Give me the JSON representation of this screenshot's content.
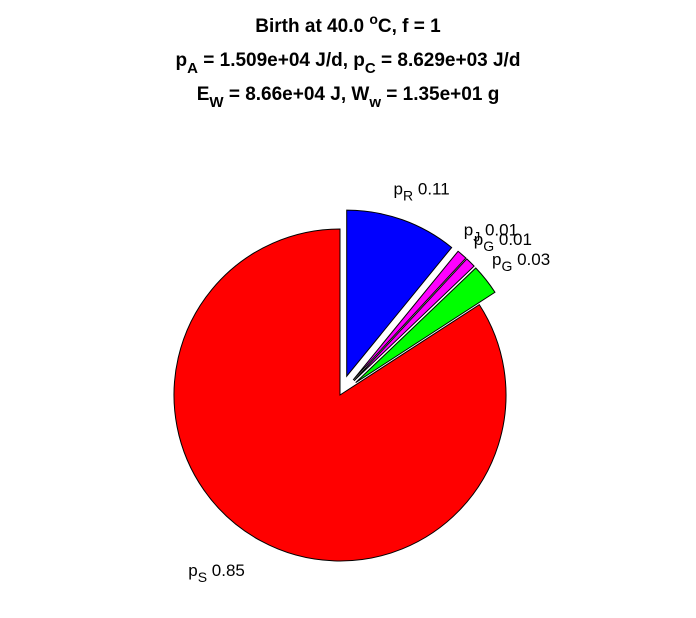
{
  "chart_data": {
    "type": "pie",
    "title": [
      [
        {
          "text": "Birth at 40.0 "
        },
        {
          "text": "o",
          "style": "sup"
        },
        {
          "text": "C, f = 1"
        }
      ],
      [
        {
          "text": "p"
        },
        {
          "text": "A",
          "style": "sub"
        },
        {
          "text": " = 1.509e+04 J/d, p"
        },
        {
          "text": "C",
          "style": "sub"
        },
        {
          "text": " = 8.629e+03 J/d"
        }
      ],
      [
        {
          "text": "E"
        },
        {
          "text": "W",
          "style": "sub"
        },
        {
          "text": " = 8.66e+04 J, W"
        },
        {
          "text": "w",
          "style": "sub"
        },
        {
          "text": " = 1.35e+01 g"
        }
      ]
    ],
    "categories": [
      {
        "symbol": "p",
        "sub": "R"
      },
      {
        "symbol": "p",
        "sub": "J"
      },
      {
        "symbol": "p",
        "sub": "G"
      },
      {
        "symbol": "p",
        "sub": "G"
      },
      {
        "symbol": "p",
        "sub": "S"
      }
    ],
    "values": [
      0.11,
      0.01,
      0.01,
      0.03,
      0.85
    ],
    "colors": [
      "#0000ff",
      "#ff00ff",
      "#ff00ff",
      "#00ff00",
      "#ff0000"
    ],
    "explode": [
      true,
      true,
      true,
      true,
      false
    ]
  }
}
